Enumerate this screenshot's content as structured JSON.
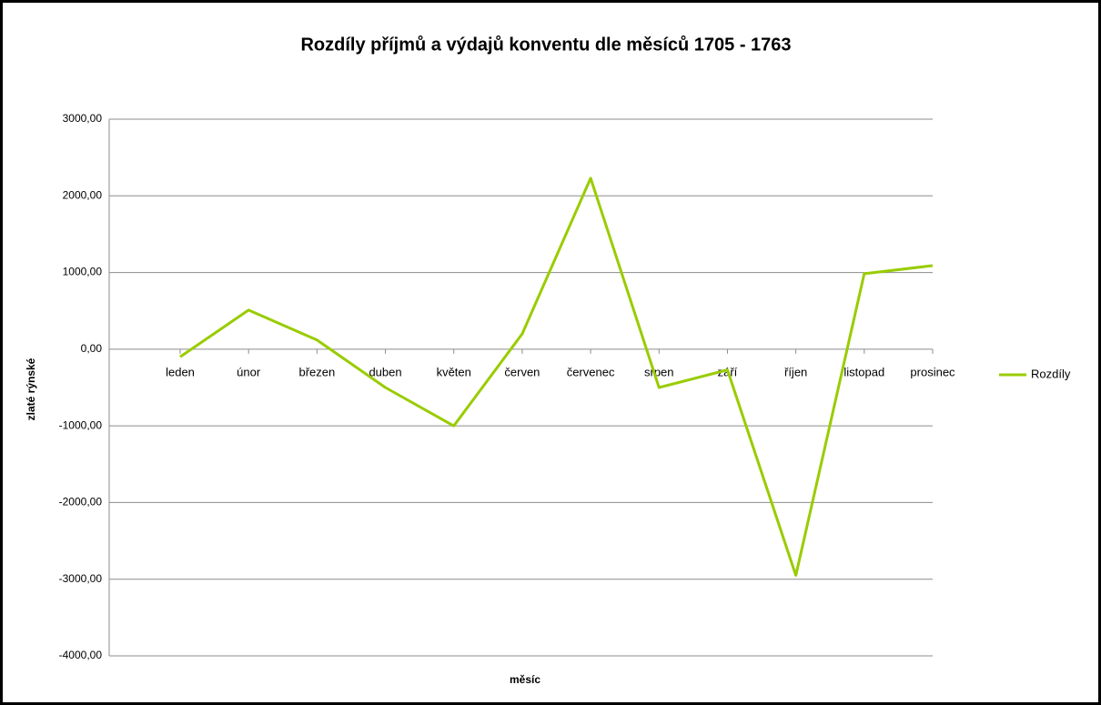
{
  "chart_data": {
    "type": "line",
    "title": "Rozdíly příjmů a výdajů konventu dle měsíců 1705 - 1763",
    "x_label": "měsíc",
    "y_label": "zlaté rýnské",
    "categories": [
      "leden",
      "únor",
      "březen",
      "duben",
      "květen",
      "červen",
      "červenec",
      "srpen",
      "září",
      "říjen",
      "listopad",
      "prosinec"
    ],
    "series": [
      {
        "name": "Rozdíly",
        "color": "#99cc00",
        "values": [
          -100,
          510,
          120,
          -500,
          -1000,
          200,
          2230,
          -500,
          -270,
          -2950,
          985,
          1090
        ]
      }
    ],
    "ylim": [
      -4000,
      3000
    ],
    "yticks": [
      {
        "value": -4000,
        "label": "-4000,00"
      },
      {
        "value": -3000,
        "label": "-3000,00"
      },
      {
        "value": -2000,
        "label": "-2000,00"
      },
      {
        "value": -1000,
        "label": "-1000,00"
      },
      {
        "value": 0,
        "label": "0,00"
      },
      {
        "value": 1000,
        "label": "1000,00"
      },
      {
        "value": 2000,
        "label": "2000,00"
      },
      {
        "value": 3000,
        "label": "3000,00"
      }
    ],
    "grid": true,
    "legend": "right"
  }
}
